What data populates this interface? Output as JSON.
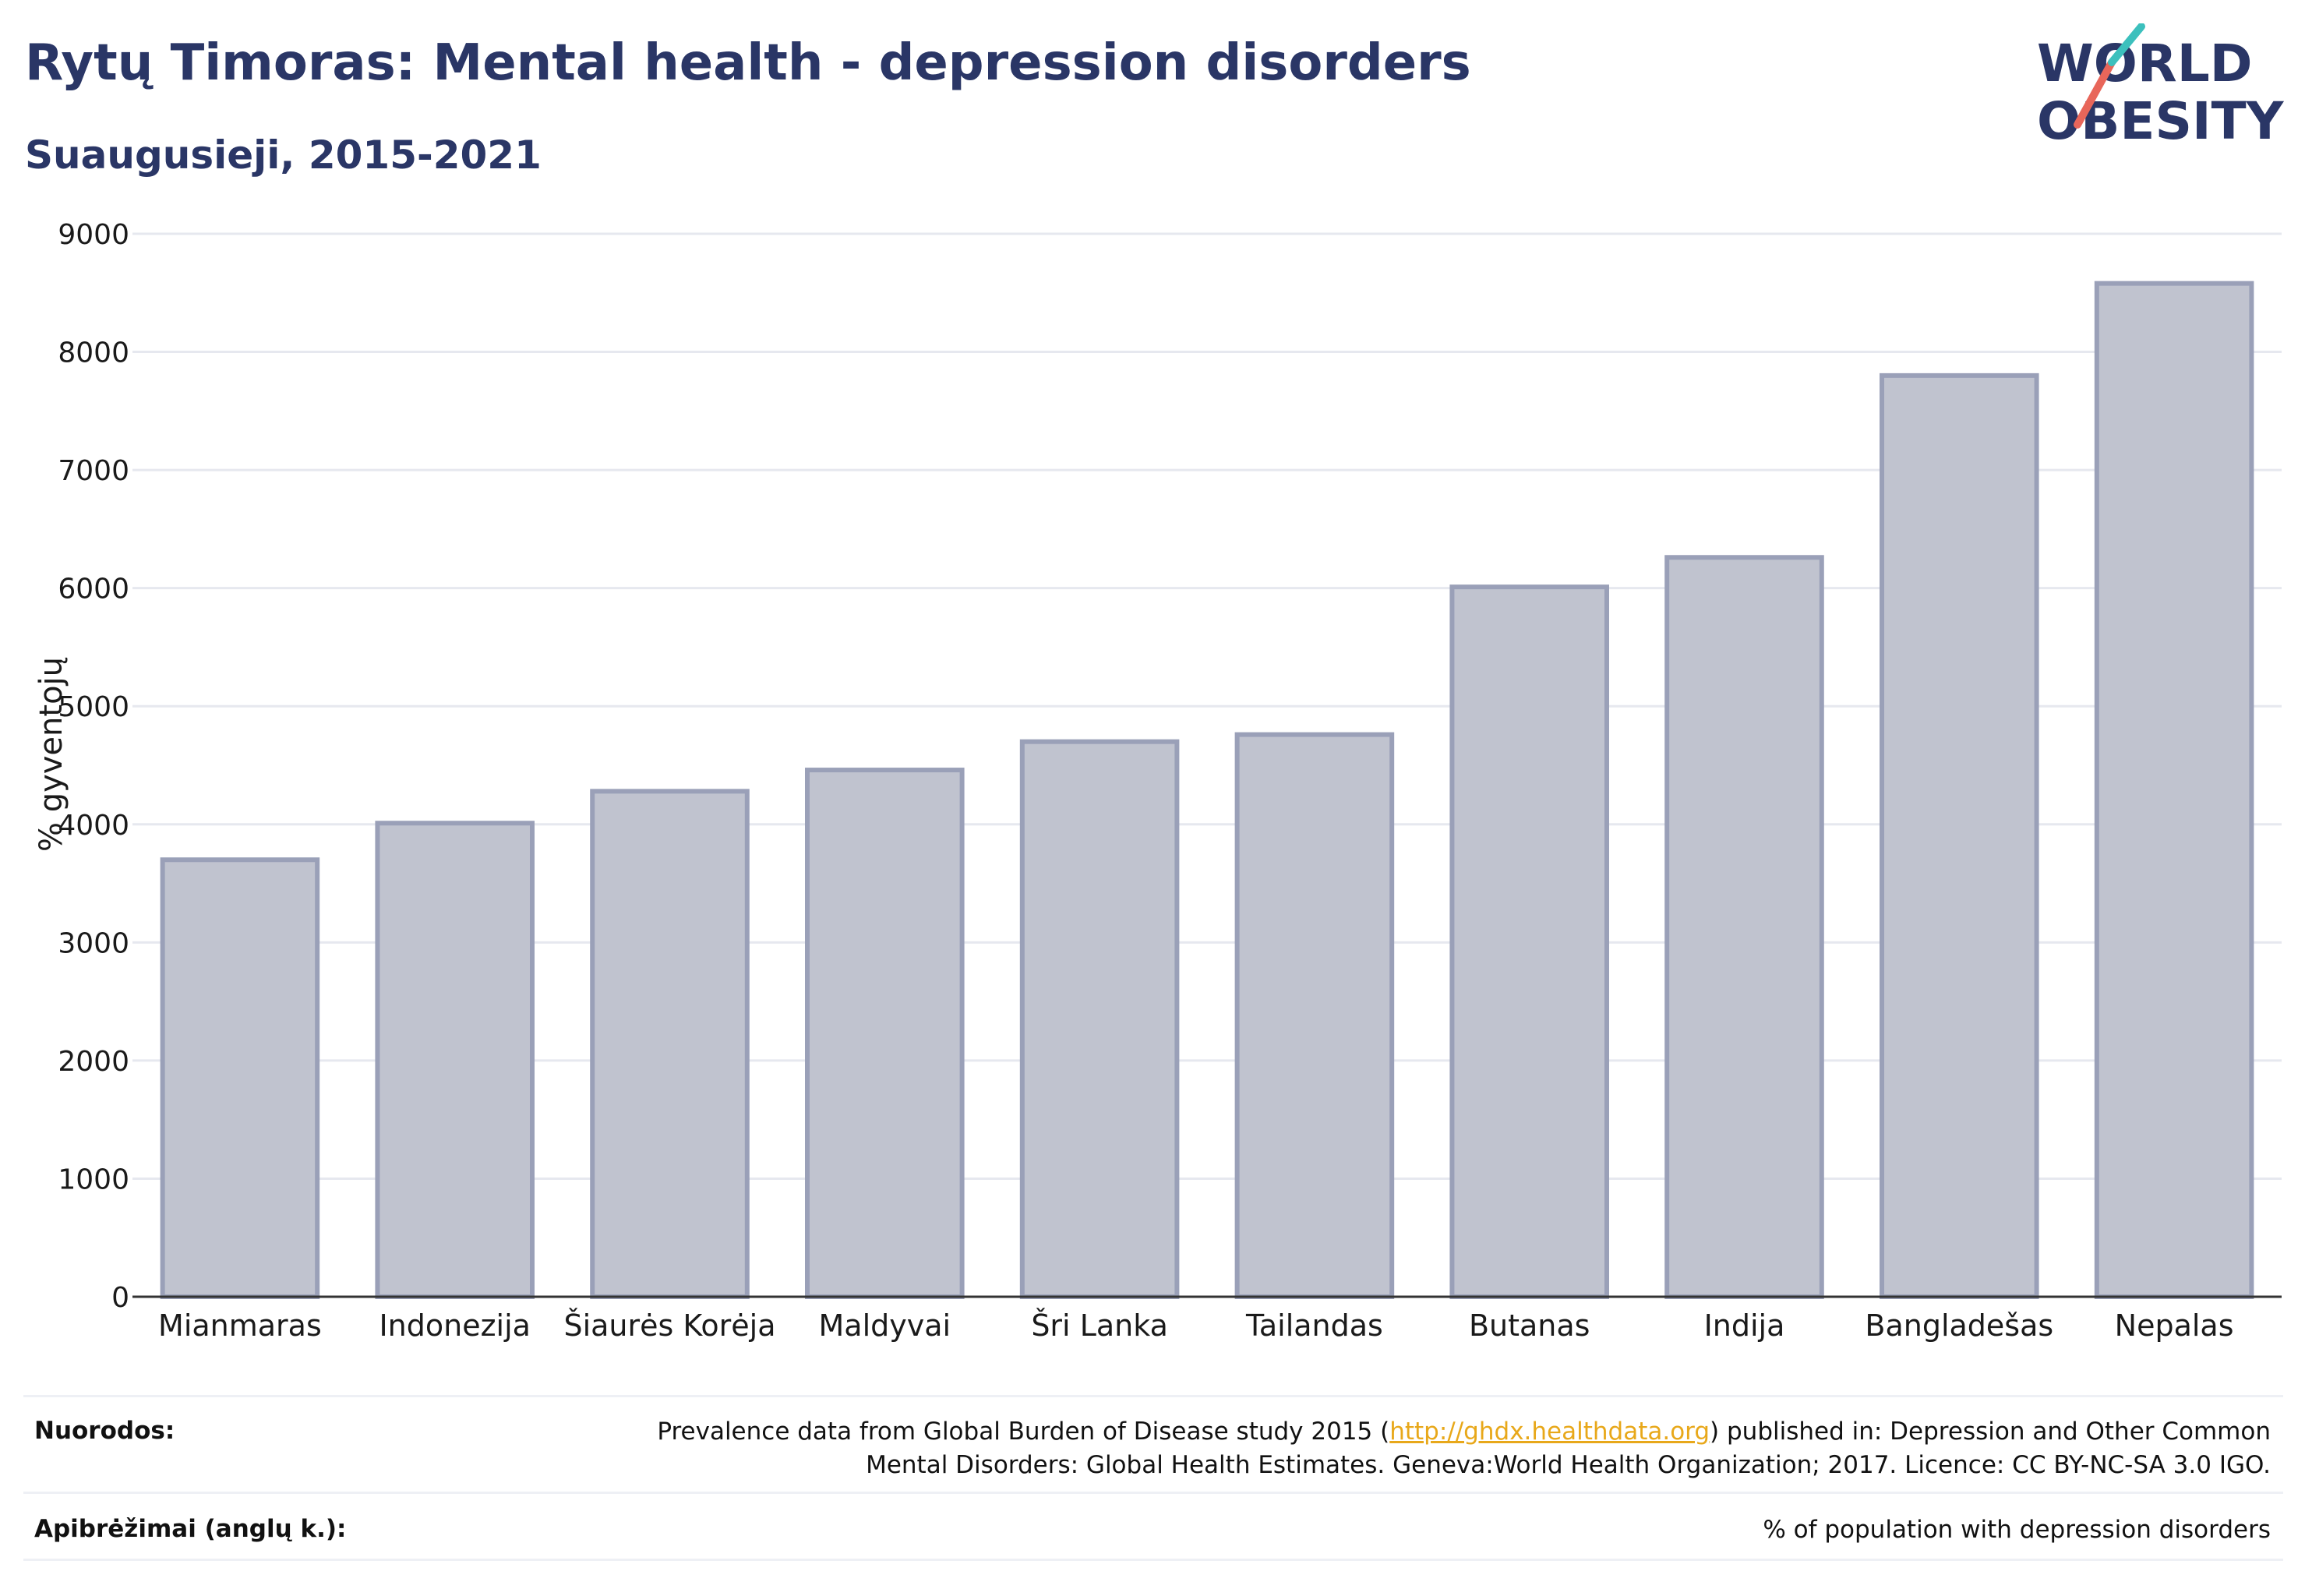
{
  "header": {
    "title": "Rytų Timoras: Mental health - depression disorders",
    "subtitle": "Suaugusieji, 2015-2021"
  },
  "logo": {
    "line1": "WORLD",
    "line2": "OBESITY",
    "text_color": "#2a3666",
    "slash_colors": [
      "#3cc0bd",
      "#e8665a"
    ]
  },
  "chart_data": {
    "type": "bar",
    "categories": [
      "Mianmaras",
      "Indonezija",
      "Šiaurės Korėja",
      "Maldyvai",
      "Šri Lanka",
      "Tailandas",
      "Butanas",
      "Indija",
      "Bangladešas",
      "Nepalas"
    ],
    "values": [
      3700,
      4010,
      4280,
      4460,
      4700,
      4760,
      6010,
      6260,
      7800,
      8580
    ],
    "title": "",
    "xlabel": "",
    "ylabel": "% gyventojų",
    "ylim": [
      0,
      9000
    ],
    "yticks": [
      0,
      1000,
      2000,
      3000,
      4000,
      5000,
      6000,
      7000,
      8000,
      9000
    ],
    "grid": true,
    "bar_fill": "#c0c3cf",
    "bar_stroke": "#9aa0b8"
  },
  "footer": {
    "sources_label": "Nuorodos:",
    "sources_text_before": "Prevalence data from Global Burden of Disease study 2015 (",
    "sources_link": "http://ghdx.healthdata.org",
    "sources_text_after": ") published in: Depression and Other Common",
    "sources_text_line2": "Mental Disorders: Global Health Estimates. Geneva:World Health Organization; 2017. Licence: CC BY-NC-SA 3.0 IGO.",
    "definitions_label": "Apibrėžimai (anglų k.):",
    "definitions_text": "% of population with depression disorders"
  }
}
